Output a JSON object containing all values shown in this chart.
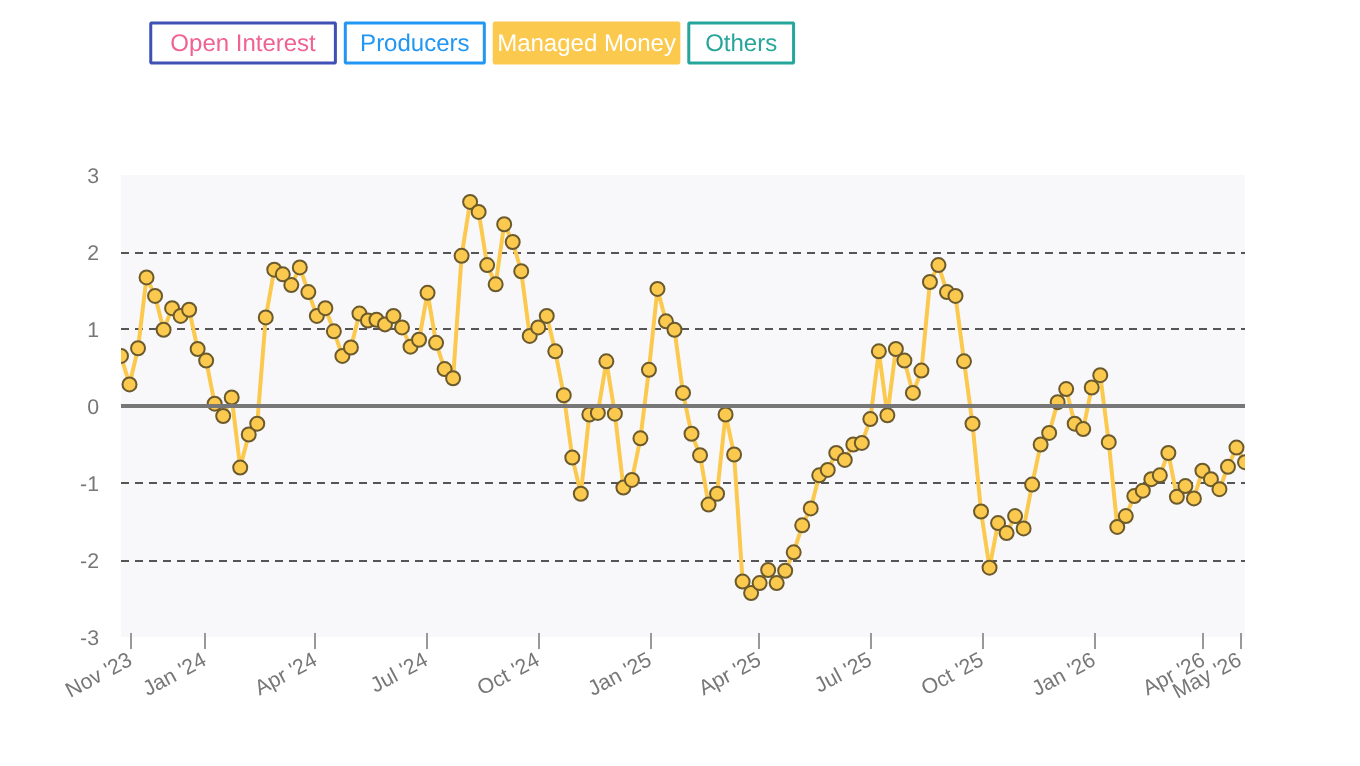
{
  "chart_data": {
    "type": "line",
    "marker": "circle",
    "grid": "y",
    "legend": "top left",
    "annotations": [
      "Open Interest",
      "Producers",
      "Others"
    ],
    "x": [
      "2023-10-24",
      "2023-10-31",
      "2023-11-07",
      "2023-11-14",
      "2023-11-21",
      "2023-11-28",
      "2023-12-05",
      "2023-12-12",
      "2023-12-19",
      "2023-12-26",
      "2024-01-02",
      "2024-01-09",
      "2024-01-16",
      "2024-01-23",
      "2024-01-30",
      "2024-02-06",
      "2024-02-13",
      "2024-02-20",
      "2024-02-27",
      "2024-03-05",
      "2024-03-12",
      "2024-03-19",
      "2024-03-26",
      "2024-04-02",
      "2024-04-09",
      "2024-04-16",
      "2024-04-23",
      "2024-04-30",
      "2024-05-07",
      "2024-05-14",
      "2024-05-21",
      "2024-05-28",
      "2024-06-04",
      "2024-06-11",
      "2024-06-18",
      "2024-06-25",
      "2024-07-02",
      "2024-07-09",
      "2024-07-16",
      "2024-07-23",
      "2024-07-30",
      "2024-08-06",
      "2024-08-13",
      "2024-08-20",
      "2024-08-27",
      "2024-09-03",
      "2024-09-10",
      "2024-09-17",
      "2024-09-24",
      "2024-10-01",
      "2024-10-08",
      "2024-10-15",
      "2024-10-22",
      "2024-10-29",
      "2024-11-05",
      "2024-11-12",
      "2024-11-19",
      "2024-11-26",
      "2024-12-03",
      "2024-12-10",
      "2024-12-17",
      "2024-12-24",
      "2024-12-31",
      "2025-01-07",
      "2025-01-14",
      "2025-01-21",
      "2025-01-28",
      "2025-02-04",
      "2025-02-11",
      "2025-02-18",
      "2025-02-25",
      "2025-03-04",
      "2025-03-11",
      "2025-03-18",
      "2025-03-25",
      "2025-04-01",
      "2025-04-08",
      "2025-04-15",
      "2025-04-22",
      "2025-04-29",
      "2025-05-06",
      "2025-05-13",
      "2025-05-20",
      "2025-05-27",
      "2025-06-03",
      "2025-06-10",
      "2025-06-17",
      "2025-06-24",
      "2025-07-01",
      "2025-07-08",
      "2025-07-15",
      "2025-07-22",
      "2025-07-29",
      "2025-08-05",
      "2025-08-12",
      "2025-08-19",
      "2025-08-26",
      "2025-09-02",
      "2025-09-09",
      "2025-09-16",
      "2025-09-23",
      "2025-09-30",
      "2025-10-07",
      "2025-10-14",
      "2025-10-21",
      "2025-10-28",
      "2025-11-04",
      "2025-11-11",
      "2025-11-18",
      "2025-11-25",
      "2025-12-02",
      "2025-12-09",
      "2025-12-16",
      "2025-12-23",
      "2025-12-30",
      "2026-01-06",
      "2026-01-13",
      "2026-01-20",
      "2026-01-27",
      "2026-02-03",
      "2026-02-10",
      "2026-02-17",
      "2026-02-24",
      "2026-03-03",
      "2026-03-10",
      "2026-03-17",
      "2026-03-24",
      "2026-03-31",
      "2026-04-07",
      "2026-04-14",
      "2026-04-21",
      "2026-04-28",
      "2026-05-05"
    ],
    "series": [
      {
        "name": "Managed Money",
        "color": "#fcc94f",
        "values": [
          0.65,
          0.28,
          0.75,
          1.67,
          1.43,
          0.99,
          1.27,
          1.17,
          1.25,
          0.74,
          0.59,
          0.03,
          -0.13,
          0.11,
          -0.8,
          -0.37,
          -0.23,
          1.15,
          1.77,
          1.71,
          1.57,
          1.8,
          1.48,
          1.17,
          1.27,
          0.97,
          0.65,
          0.76,
          1.2,
          1.11,
          1.12,
          1.06,
          1.17,
          1.02,
          0.77,
          0.86,
          1.47,
          0.82,
          0.48,
          0.36,
          1.95,
          2.65,
          2.52,
          1.83,
          1.58,
          2.36,
          2.13,
          1.75,
          0.91,
          1.02,
          1.17,
          0.71,
          0.14,
          -0.67,
          -1.14,
          -0.11,
          -0.09,
          0.58,
          -0.1,
          -1.06,
          -0.96,
          -0.42,
          0.47,
          1.52,
          1.1,
          0.99,
          0.17,
          -0.36,
          -0.64,
          -1.28,
          -1.14,
          -0.11,
          -0.63,
          -2.28,
          -2.43,
          -2.3,
          -2.13,
          -2.3,
          -2.14,
          -1.9,
          -1.55,
          -1.33,
          -0.9,
          -0.83,
          -0.61,
          -0.7,
          -0.5,
          -0.48,
          -0.17,
          0.71,
          -0.12,
          0.74,
          0.59,
          0.17,
          0.46,
          1.61,
          1.83,
          1.48,
          1.43,
          0.58,
          -0.23,
          -1.37,
          -2.1,
          -1.52,
          -1.65,
          -1.43,
          -1.59,
          -1.02,
          -0.5,
          -0.35,
          0.05,
          0.22,
          -0.23,
          -0.3,
          0.24,
          0.4,
          -0.47,
          -1.57,
          -1.43,
          -1.17,
          -1.1,
          -0.95,
          -0.9,
          -0.61,
          -1.18,
          -1.04,
          -1.2,
          -0.84,
          -0.95,
          -1.08,
          -0.79,
          -0.54,
          -0.73
        ]
      }
    ],
    "ylim": [
      -3,
      3
    ],
    "yticks": [
      -3,
      -2,
      -1,
      0,
      1,
      2,
      3
    ],
    "xlim": [
      "2023-10-24",
      "2026-05-05"
    ],
    "xticks": [
      {
        "value": "2023-11-01",
        "label": "Nov '23"
      },
      {
        "value": "2024-01-01",
        "label": "Jan '24"
      },
      {
        "value": "2024-04-01",
        "label": "Apr '24"
      },
      {
        "value": "2024-07-01",
        "label": "Jul '24"
      },
      {
        "value": "2024-10-01",
        "label": "Oct '24"
      },
      {
        "value": "2025-01-01",
        "label": "Jan '25"
      },
      {
        "value": "2025-04-01",
        "label": "Apr '25"
      },
      {
        "value": "2025-07-01",
        "label": "Jul '25"
      },
      {
        "value": "2025-10-01",
        "label": "Oct '25"
      },
      {
        "value": "2026-01-01",
        "label": "Jan '26"
      },
      {
        "value": "2026-04-01",
        "label": "Apr '26"
      },
      {
        "value": "2026-05-01",
        "label": "May '26"
      }
    ],
    "ref_lines": [
      {
        "axis": "y",
        "value": 0,
        "color": "#777777"
      }
    ]
  }
}
